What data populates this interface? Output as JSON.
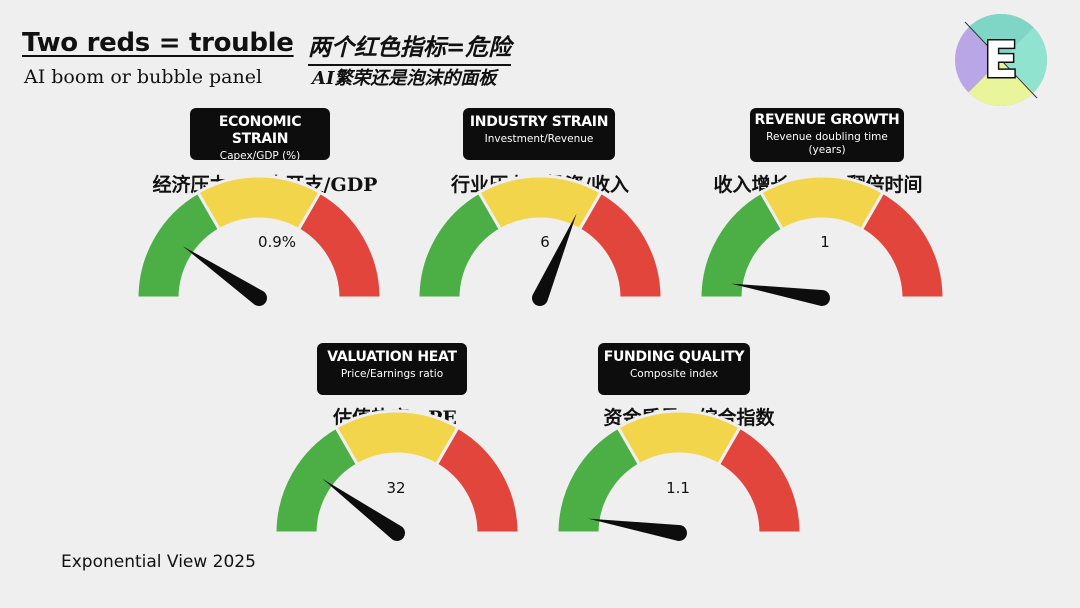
{
  "header": {
    "title": "Two reds = trouble",
    "subtitle": "AI boom or bubble panel",
    "title_zh": "两个红色指标=危险",
    "subtitle_zh": "AI繁荣还是泡沫的面板"
  },
  "logo": {
    "letter": "E",
    "icon": "exponential-view-logo-icon"
  },
  "colors": {
    "green": "#4caf45",
    "yellow": "#f3d54b",
    "red": "#e2453c",
    "needle": "#0d0d0d"
  },
  "gauges": [
    {
      "title": "ECONOMIC STRAIN",
      "subtitle": "Capex/GDP (%)",
      "zh": "经济压力：资本开支/GDP",
      "value": "0.9%",
      "needle_fraction": 0.19
    },
    {
      "title": "INDUSTRY STRAIN",
      "subtitle": "Investment/Revenue",
      "zh": "行业压力：投资/收入",
      "value": "6",
      "needle_fraction": 0.63
    },
    {
      "title": "REVENUE GROWTH",
      "subtitle": "Revenue doubling time (years)",
      "zh": "收入增长：收入翻倍时间",
      "value": "1",
      "needle_fraction": 0.05
    },
    {
      "title": "VALUATION HEAT",
      "subtitle": "Price/Earnings ratio",
      "zh": "估值热度：PE",
      "value": "32",
      "needle_fraction": 0.2
    },
    {
      "title": "FUNDING QUALITY",
      "subtitle": "Composite index",
      "zh": "资金质量：综合指数",
      "value": "1.1",
      "needle_fraction": 0.05
    }
  ],
  "footer": "Exponential View 2025"
}
